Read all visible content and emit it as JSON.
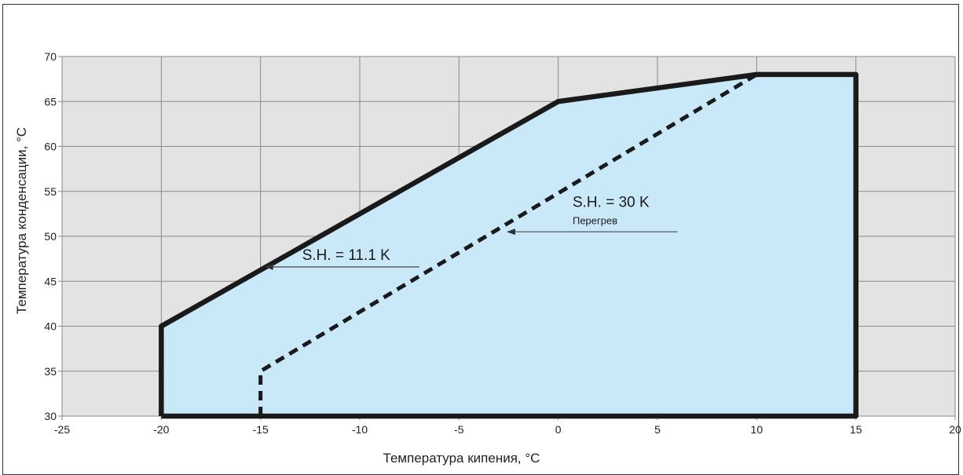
{
  "chart_data": {
    "type": "area",
    "xlabel": "Температура кипения, °C",
    "ylabel": "Температура конденсации, °C",
    "xlim": [
      -25,
      20
    ],
    "ylim": [
      30,
      70
    ],
    "x_ticks": [
      -25,
      -20,
      -15,
      -10,
      -5,
      0,
      5,
      10,
      15,
      20
    ],
    "y_ticks": [
      30,
      35,
      40,
      45,
      50,
      55,
      60,
      65,
      70
    ],
    "grid": true,
    "colors": {
      "plot_background": "#e3e3e3",
      "envelope_fill": "#c9e9f9",
      "line": "#1a1a1a",
      "grid": "#8a8a8a"
    },
    "series": [
      {
        "name": "S.H. = 11.1 K",
        "style": "solid",
        "points": [
          [
            -20,
            30
          ],
          [
            -20,
            40
          ],
          [
            0,
            65
          ],
          [
            10,
            68
          ],
          [
            15,
            68
          ],
          [
            15,
            30
          ],
          [
            -20,
            30
          ]
        ]
      },
      {
        "name": "S.H. = 30 K",
        "style": "dashed",
        "points": [
          [
            -15,
            30
          ],
          [
            -15,
            35
          ],
          [
            10,
            68
          ]
        ]
      }
    ],
    "annotations": [
      {
        "text": "S.H. = 11.1 K",
        "arrow_from": [
          -7,
          46.6
        ],
        "arrow_to": [
          -14.8,
          46.6
        ]
      },
      {
        "text": "S.H. = 30 K",
        "subtext": "Перегрев",
        "arrow_from": [
          6,
          50.5
        ],
        "arrow_to": [
          -2.6,
          50.5
        ]
      }
    ]
  }
}
